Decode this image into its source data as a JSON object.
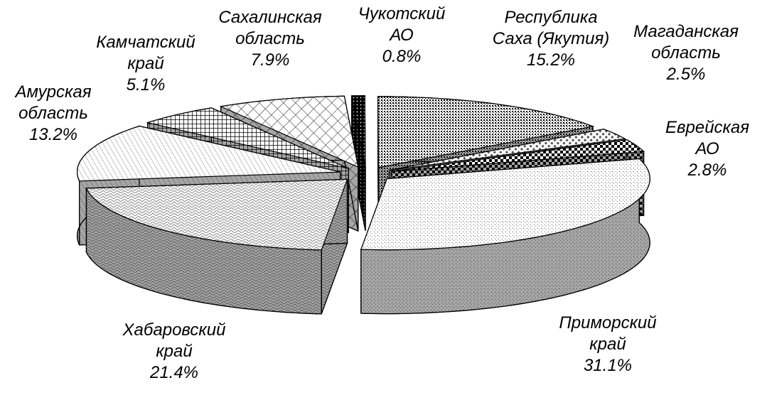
{
  "chart_data": {
    "type": "pie3d",
    "categories": [
      "Чукотский\nАО",
      "Республика\nСаха (Якутия)",
      "Магаданская\nобласть",
      "Еврейская\nАО",
      "Приморский\nкрай",
      "Хабаровский\nкрай",
      "Амурская\nобласть",
      "Камчатский\nкрай",
      "Сахалинская\nобласть"
    ],
    "values": [
      0.8,
      15.2,
      2.5,
      2.8,
      31.1,
      21.4,
      13.2,
      5.1,
      7.9
    ],
    "value_labels": [
      "0.8%",
      "15.2%",
      "2.5%",
      "2.8%",
      "31.1%",
      "21.4%",
      "13.2%",
      "5.1%",
      "7.9%"
    ]
  }
}
